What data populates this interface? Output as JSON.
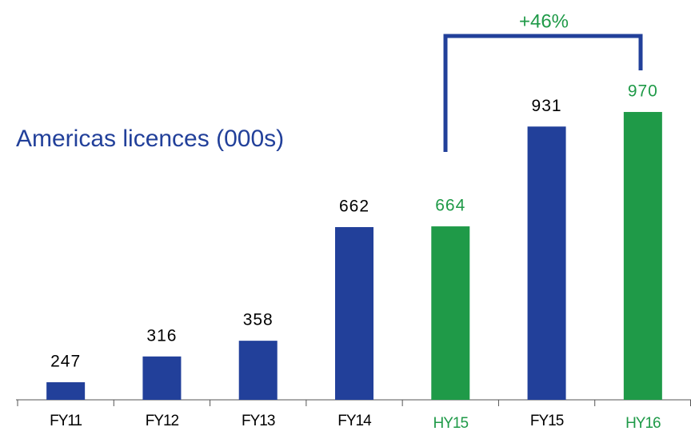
{
  "chart_data": {
    "type": "bar",
    "title": "Americas licences (000s)",
    "categories": [
      "FY11",
      "FY12",
      "FY13",
      "FY14",
      "HY15",
      "FY15",
      "HY16"
    ],
    "values": [
      247,
      316,
      358,
      662,
      664,
      931,
      970
    ],
    "colors": [
      "#22409a",
      "#22409a",
      "#22409a",
      "#22409a",
      "#1f9a48",
      "#22409a",
      "#1f9a48"
    ],
    "ylim": [
      200,
      1000
    ],
    "annotation": "+46%"
  }
}
